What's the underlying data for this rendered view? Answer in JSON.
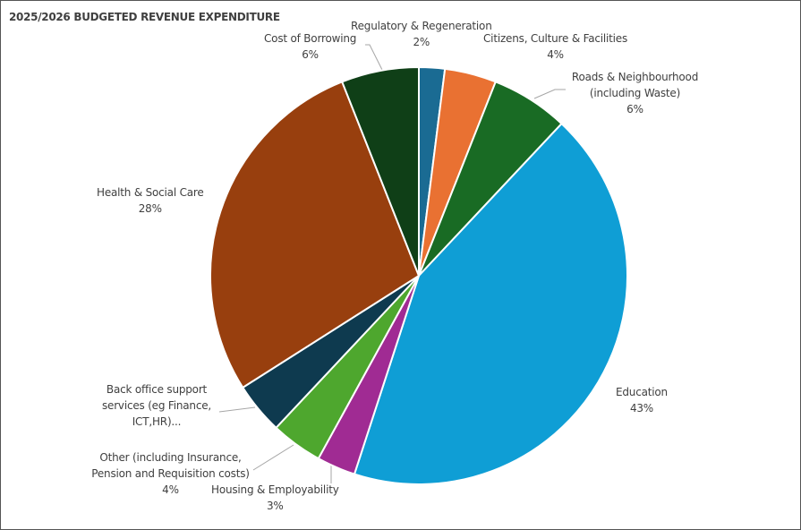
{
  "chart_data": {
    "type": "pie",
    "title": "2025/2026 BUDGETED REVENUE EXPENDITURE",
    "slices": [
      {
        "name": "Regulatory & Regeneration",
        "label": "Regulatory & Regeneration",
        "value": 2,
        "value_label": "2%",
        "color": "#1a6b93"
      },
      {
        "name": "Citizens, Culture & Facilities",
        "label": "Citizens, Culture & Facilities",
        "value": 4,
        "value_label": "4%",
        "color": "#e97132"
      },
      {
        "name": "Roads & Neighbourhood (including Waste)",
        "label": "Roads & Neighbourhood (including Waste)",
        "value": 6,
        "value_label": "6%",
        "color": "#196b24"
      },
      {
        "name": "Education",
        "label": "Education",
        "value": 43,
        "value_label": "43%",
        "color": "#0f9ed5"
      },
      {
        "name": "Housing & Employability",
        "label": "Housing & Employability",
        "value": 3,
        "value_label": "3%",
        "color": "#a02b93"
      },
      {
        "name": "Other (including Insurance, Pension and Requisition costs)",
        "label": "Other (including Insurance, Pension and Requisition costs)",
        "value": 4,
        "value_label": "4%",
        "color": "#4ea72e"
      },
      {
        "name": "Back office support services (eg Finance, ICT,HR)...",
        "label": "Back office support services (eg Finance, ICT,HR)...",
        "value": 4,
        "value_label": "4%",
        "color": "#0e3a4f"
      },
      {
        "name": "Health & Social Care",
        "label": "Health & Social Care",
        "value": 28,
        "value_label": "28%",
        "color": "#983f0e"
      },
      {
        "name": "Cost of Borrowing",
        "label": "Cost of Borrowing",
        "value": 6,
        "value_label": "6%",
        "color": "#0f3f17"
      }
    ],
    "start_angle": "top",
    "direction": "clockwise",
    "legend": "none"
  }
}
